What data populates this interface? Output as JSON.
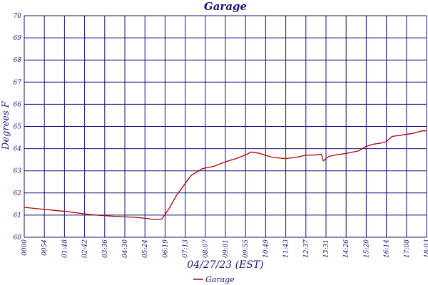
{
  "chart_data": {
    "type": "line",
    "title": "Garage",
    "xlabel": "04/27/23 (EST)",
    "ylabel": "Degrees F",
    "ylim": [
      60,
      70
    ],
    "y_ticks": [
      "60",
      "61",
      "62",
      "63",
      "64",
      "65",
      "66",
      "67",
      "68",
      "69",
      "70"
    ],
    "x_ticks": [
      "0000",
      "0054",
      "01:48",
      "02:42",
      "03:36",
      "04:30",
      "05:24",
      "06:19",
      "07:13",
      "08:07",
      "09:01",
      "09:55",
      "10:49",
      "11:43",
      "12:37",
      "13:31",
      "14:26",
      "15:20",
      "16:14",
      "17:08",
      "18:03"
    ],
    "grid": true,
    "legend_position": "bottom-center",
    "colors": {
      "series": "#aa0000",
      "grid": "#12127a",
      "text": "#12127a"
    },
    "series": [
      {
        "name": "Garage",
        "x": [
          "00:00",
          "00:30",
          "01:00",
          "01:30",
          "02:00",
          "02:30",
          "03:00",
          "03:30",
          "04:00",
          "04:30",
          "05:00",
          "05:30",
          "05:50",
          "06:10",
          "06:30",
          "06:50",
          "07:10",
          "07:30",
          "07:50",
          "08:00",
          "08:30",
          "09:00",
          "09:30",
          "10:00",
          "10:10",
          "10:30",
          "10:49",
          "11:10",
          "11:43",
          "12:10",
          "12:37",
          "13:10",
          "13:20",
          "13:25",
          "13:40",
          "14:00",
          "14:26",
          "15:00",
          "15:20",
          "15:40",
          "16:00",
          "16:14",
          "16:30",
          "17:00",
          "17:30",
          "17:50",
          "18:03"
        ],
        "values": [
          61.35,
          61.3,
          61.25,
          61.2,
          61.15,
          61.08,
          61.02,
          60.98,
          60.95,
          60.92,
          60.9,
          60.85,
          60.8,
          60.82,
          61.3,
          61.9,
          62.35,
          62.8,
          63.0,
          63.1,
          63.2,
          63.4,
          63.55,
          63.75,
          63.85,
          63.8,
          63.7,
          63.6,
          63.55,
          63.6,
          63.7,
          63.72,
          63.75,
          63.45,
          63.65,
          63.72,
          63.78,
          63.9,
          64.1,
          64.2,
          64.25,
          64.3,
          64.55,
          64.62,
          64.7,
          64.8,
          64.8
        ]
      }
    ]
  }
}
